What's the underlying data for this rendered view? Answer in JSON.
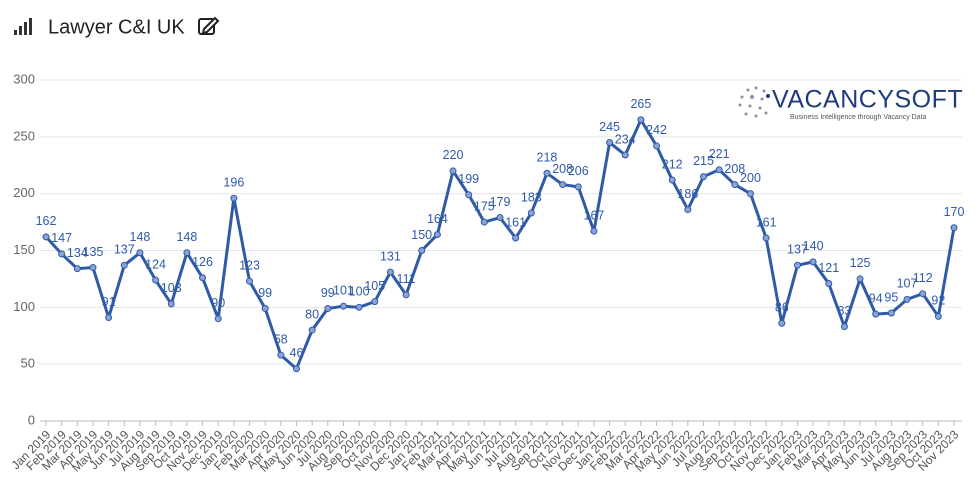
{
  "chart_data": {
    "type": "line",
    "title": "Lawyer C&I UK",
    "logo": "VACANCYSOFT",
    "logo_tagline": "Business Intelligence through Vacancy Data",
    "categories": [
      "Jan 2019",
      "Feb 2019",
      "Mar 2019",
      "Apr 2019",
      "May 2019",
      "Jun 2019",
      "Jul 2019",
      "Aug 2019",
      "Sep 2019",
      "Oct 2019",
      "Nov 2019",
      "Dec 2019",
      "Jan 2020",
      "Feb 2020",
      "Mar 2020",
      "Apr 2020",
      "May 2020",
      "Jun 2020",
      "Jul 2020",
      "Aug 2020",
      "Sep 2020",
      "Oct 2020",
      "Nov 2020",
      "Dec 2020",
      "Jan 2021",
      "Feb 2021",
      "Mar 2021",
      "Apr 2021",
      "May 2021",
      "Jun 2021",
      "Jul 2021",
      "Aug 2021",
      "Sep 2021",
      "Oct 2021",
      "Nov 2021",
      "Dec 2021",
      "Jan 2022",
      "Feb 2022",
      "Mar 2022",
      "Apr 2022",
      "May 2022",
      "Jun 2022",
      "Jul 2022",
      "Aug 2022",
      "Sep 2022",
      "Oct 2022",
      "Nov 2022",
      "Dec 2022",
      "Jan 2023",
      "Feb 2023",
      "Mar 2023",
      "Apr 2023",
      "May 2023",
      "Jun 2023",
      "Jul 2023",
      "Aug 2023",
      "Sep 2023",
      "Oct 2023",
      "Nov 2023"
    ],
    "values": [
      162,
      147,
      134,
      135,
      91,
      137,
      148,
      124,
      103,
      148,
      126,
      90,
      196,
      123,
      99,
      58,
      46,
      80,
      99,
      101,
      100,
      105,
      131,
      111,
      150,
      164,
      220,
      199,
      175,
      179,
      161,
      183,
      218,
      208,
      206,
      167,
      245,
      234,
      265,
      242,
      212,
      186,
      215,
      221,
      208,
      200,
      161,
      86,
      137,
      140,
      121,
      83,
      125,
      94,
      95,
      107,
      112,
      92,
      170
    ],
    "color": "#2f5aa8",
    "ylim": [
      0,
      300
    ],
    "yticks": [
      0,
      50,
      100,
      150,
      200,
      250,
      300
    ],
    "grid": true
  }
}
